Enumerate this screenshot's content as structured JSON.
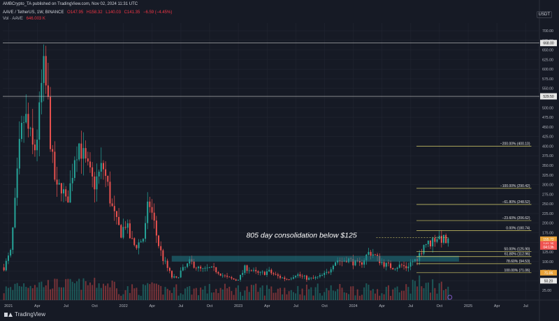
{
  "header": {
    "publisher": "AMBCrypto_TA published on TradingView.com, Nov 02, 2024 11:31 UTC",
    "symbol": "AAVE / TetherUS, 1W, BINANCE",
    "open": "O147.95",
    "high": "H158.32",
    "low": "L140.03",
    "close": "C141.35",
    "change": "−6.59 (−4.45%)",
    "volume_label": "Vol · AAVE",
    "volume_value": "646.003 K",
    "currency": "USDT"
  },
  "branding": {
    "logo_text": "TradingView"
  },
  "colors": {
    "background": "#161a25",
    "grid": "#222632",
    "up": "#26a69a",
    "down": "#ef5350",
    "zone": "#1f7a86",
    "fib": "#d8cf6a",
    "axis_text": "#b2b5be"
  },
  "chart_data": {
    "type": "candlestick",
    "ylim": [
      0,
      720
    ],
    "y_ticks": [
      700,
      675,
      650,
      625,
      600,
      575,
      550,
      525,
      500,
      475,
      450,
      425,
      400,
      375,
      350,
      325,
      300,
      275,
      250,
      225,
      200,
      175,
      150,
      125,
      100,
      75,
      50,
      25
    ],
    "x_ticks": [
      {
        "label": "2021",
        "date": 2021.0
      },
      {
        "label": "Apr",
        "date": 2021.25
      },
      {
        "label": "Jul",
        "date": 2021.5
      },
      {
        "label": "Oct",
        "date": 2021.75
      },
      {
        "label": "2022",
        "date": 2022.0
      },
      {
        "label": "Apr",
        "date": 2022.25
      },
      {
        "label": "Jul",
        "date": 2022.5
      },
      {
        "label": "Oct",
        "date": 2022.75
      },
      {
        "label": "2023",
        "date": 2023.0
      },
      {
        "label": "Apr",
        "date": 2023.25
      },
      {
        "label": "Jul",
        "date": 2023.5
      },
      {
        "label": "Oct",
        "date": 2023.75
      },
      {
        "label": "2024",
        "date": 2024.0
      },
      {
        "label": "Apr",
        "date": 2024.25
      },
      {
        "label": "Jul",
        "date": 2024.5
      },
      {
        "label": "Oct",
        "date": 2024.75
      },
      {
        "label": "2025",
        "date": 2025.0
      },
      {
        "label": "Apr",
        "date": 2025.25
      },
      {
        "label": "Jul",
        "date": 2025.5
      }
    ],
    "xlim": [
      2020.95,
      2025.62
    ],
    "price_path": [
      [
        2020.96,
        85
      ],
      [
        2021.02,
        125
      ],
      [
        2021.06,
        260
      ],
      [
        2021.1,
        410
      ],
      [
        2021.14,
        480
      ],
      [
        2021.18,
        430
      ],
      [
        2021.22,
        380
      ],
      [
        2021.26,
        450
      ],
      [
        2021.3,
        600
      ],
      [
        2021.34,
        520
      ],
      [
        2021.38,
        360
      ],
      [
        2021.42,
        280
      ],
      [
        2021.46,
        300
      ],
      [
        2021.5,
        250
      ],
      [
        2021.54,
        300
      ],
      [
        2021.58,
        390
      ],
      [
        2021.62,
        410
      ],
      [
        2021.66,
        360
      ],
      [
        2021.7,
        330
      ],
      [
        2021.74,
        300
      ],
      [
        2021.78,
        320
      ],
      [
        2021.82,
        350
      ],
      [
        2021.86,
        300
      ],
      [
        2021.9,
        240
      ],
      [
        2021.94,
        200
      ],
      [
        2021.98,
        175
      ],
      [
        2022.02,
        200
      ],
      [
        2022.06,
        160
      ],
      [
        2022.1,
        140
      ],
      [
        2022.14,
        150
      ],
      [
        2022.18,
        165
      ],
      [
        2022.22,
        260
      ],
      [
        2022.26,
        210
      ],
      [
        2022.3,
        150
      ],
      [
        2022.34,
        110
      ],
      [
        2022.38,
        85
      ],
      [
        2022.42,
        60
      ],
      [
        2022.46,
        55
      ],
      [
        2022.5,
        75
      ],
      [
        2022.54,
        85
      ],
      [
        2022.58,
        100
      ],
      [
        2022.62,
        90
      ],
      [
        2022.66,
        80
      ],
      [
        2022.7,
        78
      ],
      [
        2022.74,
        82
      ],
      [
        2022.78,
        80
      ],
      [
        2022.82,
        75
      ],
      [
        2022.86,
        65
      ],
      [
        2022.9,
        58
      ],
      [
        2022.94,
        55
      ],
      [
        2022.98,
        52
      ],
      [
        2023.02,
        62
      ],
      [
        2023.06,
        85
      ],
      [
        2023.1,
        80
      ],
      [
        2023.14,
        72
      ],
      [
        2023.18,
        68
      ],
      [
        2023.22,
        70
      ],
      [
        2023.26,
        75
      ],
      [
        2023.3,
        68
      ],
      [
        2023.34,
        62
      ],
      [
        2023.38,
        58
      ],
      [
        2023.42,
        55
      ],
      [
        2023.46,
        60
      ],
      [
        2023.5,
        68
      ],
      [
        2023.54,
        62
      ],
      [
        2023.58,
        58
      ],
      [
        2023.62,
        55
      ],
      [
        2023.66,
        56
      ],
      [
        2023.7,
        60
      ],
      [
        2023.74,
        65
      ],
      [
        2023.78,
        72
      ],
      [
        2023.82,
        95
      ],
      [
        2023.86,
        105
      ],
      [
        2023.9,
        100
      ],
      [
        2023.94,
        108
      ],
      [
        2023.98,
        102
      ],
      [
        2024.02,
        95
      ],
      [
        2024.06,
        92
      ],
      [
        2024.1,
        110
      ],
      [
        2024.14,
        125
      ],
      [
        2024.18,
        118
      ],
      [
        2024.22,
        105
      ],
      [
        2024.26,
        95
      ],
      [
        2024.3,
        90
      ],
      [
        2024.34,
        85
      ],
      [
        2024.38,
        88
      ],
      [
        2024.42,
        90
      ],
      [
        2024.46,
        85
      ],
      [
        2024.5,
        98
      ],
      [
        2024.54,
        105
      ],
      [
        2024.58,
        120
      ],
      [
        2024.62,
        150
      ],
      [
        2024.66,
        145
      ],
      [
        2024.7,
        160
      ],
      [
        2024.74,
        165
      ],
      [
        2024.78,
        158
      ],
      [
        2024.82,
        150
      ],
      [
        2024.84,
        141
      ]
    ],
    "reference_lines": [
      {
        "label": "668.00",
        "value": 668
      },
      {
        "label": "529.50",
        "value": 529.5
      }
    ],
    "fib_levels": [
      {
        "label": "−200.00% (400.10)",
        "value": 400.1
      },
      {
        "label": "−100.00% (290.42)",
        "value": 290.42
      },
      {
        "label": "−61.80% (248.52)",
        "value": 248.52
      },
      {
        "label": "−23.60% (206.62)",
        "value": 206.62
      },
      {
        "label": "0.00% (180.74)",
        "value": 180.74
      },
      {
        "label": "50.00% (125.90)",
        "value": 125.9
      },
      {
        "label": "61.80% (112.96)",
        "value": 112.96
      },
      {
        "label": "78.60% (94.53)",
        "value": 94.53
      },
      {
        "label": "100.00% (71.06)",
        "value": 71.06
      }
    ],
    "zone": {
      "x_start": 2022.42,
      "x_end": 2024.92,
      "y_low": 100,
      "y_high": 115
    },
    "annotation": {
      "text": "805 day consolidation below $125",
      "x": 2023.55,
      "y": 162
    },
    "price_tags": [
      {
        "label": "155.72",
        "value": 158,
        "color": "#e8a23a"
      },
      {
        "label": "141.35",
        "value": 146,
        "color": "#ef5350"
      },
      {
        "label": "04:13h",
        "value": 138,
        "color": "#ef5350"
      },
      {
        "label": "71.06",
        "value": 71.06,
        "color": "#e8a23a"
      },
      {
        "label": "50.20",
        "value": 50.2,
        "color": "#e8e8e8"
      }
    ],
    "prev_high": {
      "value": 162,
      "x_start": 2024.2
    }
  }
}
